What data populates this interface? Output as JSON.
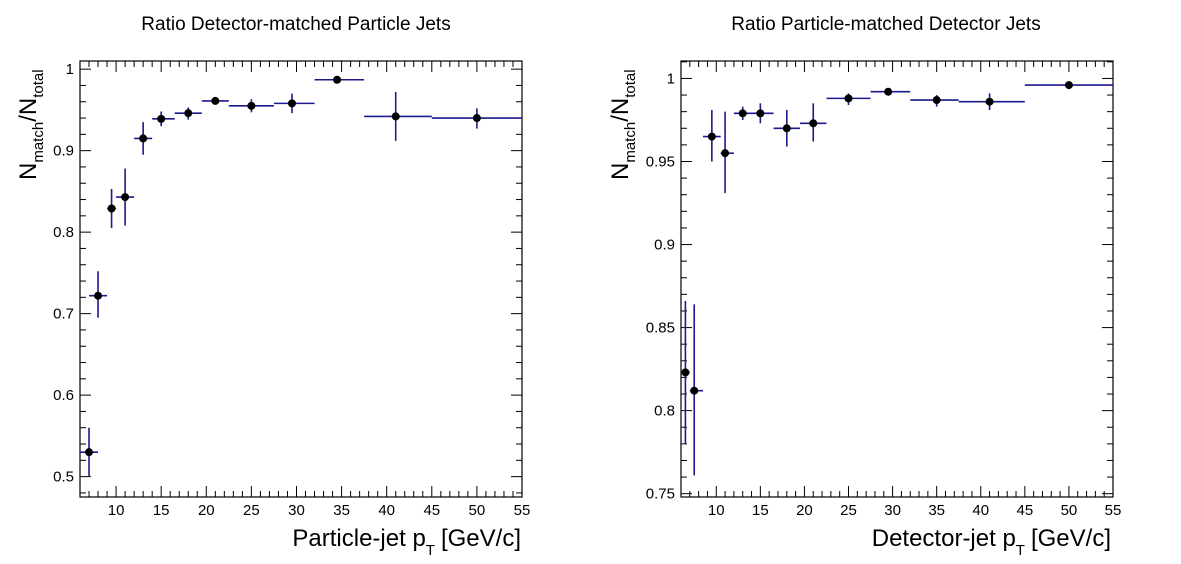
{
  "chart_data": [
    {
      "type": "scatter",
      "title": "Ratio Detector-matched Particle Jets",
      "xlabel": {
        "main": "Particle-jet p",
        "sub": "T",
        "unit": "[GeV/c]"
      },
      "ylabel": {
        "n": "N",
        "sub1": "match",
        "slash": "/N",
        "sub2": "total"
      },
      "xlim": [
        6,
        55
      ],
      "ylim": [
        0.475,
        1.01
      ],
      "xticks": [
        10,
        15,
        20,
        25,
        30,
        35,
        40,
        45,
        50,
        55
      ],
      "yticks": [
        0.5,
        0.6,
        0.7,
        0.8,
        0.9,
        1
      ],
      "ytick_labels": [
        "0.5",
        "0.6",
        "0.7",
        "0.8",
        "0.9",
        "1"
      ],
      "marker_color": "#000000",
      "errorbar_color": "#1a1a8c",
      "points": [
        {
          "x": 7.0,
          "xlo": 6.0,
          "xhi": 8.0,
          "y": 0.53,
          "ylo": 0.5,
          "yhi": 0.56
        },
        {
          "x": 8.0,
          "xlo": 7.0,
          "xhi": 9.0,
          "y": 0.722,
          "ylo": 0.695,
          "yhi": 0.752
        },
        {
          "x": 9.5,
          "xlo": 9.0,
          "xhi": 10.0,
          "y": 0.829,
          "ylo": 0.805,
          "yhi": 0.853
        },
        {
          "x": 11.0,
          "xlo": 10.0,
          "xhi": 12.0,
          "y": 0.843,
          "ylo": 0.808,
          "yhi": 0.878
        },
        {
          "x": 13.0,
          "xlo": 12.0,
          "xhi": 14.0,
          "y": 0.915,
          "ylo": 0.895,
          "yhi": 0.935
        },
        {
          "x": 15.0,
          "xlo": 14.0,
          "xhi": 16.5,
          "y": 0.939,
          "ylo": 0.93,
          "yhi": 0.948
        },
        {
          "x": 18.0,
          "xlo": 16.5,
          "xhi": 19.5,
          "y": 0.946,
          "ylo": 0.938,
          "yhi": 0.953
        },
        {
          "x": 21.0,
          "xlo": 19.5,
          "xhi": 22.5,
          "y": 0.961,
          "ylo": 0.957,
          "yhi": 0.965
        },
        {
          "x": 25.0,
          "xlo": 22.5,
          "xhi": 27.5,
          "y": 0.955,
          "ylo": 0.947,
          "yhi": 0.963
        },
        {
          "x": 29.5,
          "xlo": 27.5,
          "xhi": 32.0,
          "y": 0.958,
          "ylo": 0.946,
          "yhi": 0.97
        },
        {
          "x": 34.5,
          "xlo": 32.0,
          "xhi": 37.5,
          "y": 0.987,
          "ylo": 0.984,
          "yhi": 0.99
        },
        {
          "x": 41.0,
          "xlo": 37.5,
          "xhi": 45.0,
          "y": 0.942,
          "ylo": 0.912,
          "yhi": 0.972
        },
        {
          "x": 50.0,
          "xlo": 45.0,
          "xhi": 55.0,
          "y": 0.94,
          "ylo": 0.927,
          "yhi": 0.952
        }
      ]
    },
    {
      "type": "scatter",
      "title": "Ratio Particle-matched Detector Jets",
      "xlabel": {
        "main": "Detector-jet p",
        "sub": "T",
        "unit": "[GeV/c]"
      },
      "ylabel": {
        "n": "N",
        "sub1": "match",
        "slash": "/N",
        "sub2": "total"
      },
      "xlim": [
        6,
        55
      ],
      "ylim": [
        0.748,
        1.0105
      ],
      "xticks": [
        10,
        15,
        20,
        25,
        30,
        35,
        40,
        45,
        50,
        55
      ],
      "yticks": [
        0.75,
        0.8,
        0.85,
        0.9,
        0.95,
        1
      ],
      "ytick_labels": [
        "0.75",
        "0.8",
        "0.85",
        "0.9",
        "0.95",
        "1"
      ],
      "marker_color": "#000000",
      "errorbar_color": "#1a1a8c",
      "points": [
        {
          "x": 6.5,
          "xlo": 6.0,
          "xhi": 7.0,
          "y": 0.823,
          "ylo": 0.78,
          "yhi": 0.866
        },
        {
          "x": 7.5,
          "xlo": 7.0,
          "xhi": 8.5,
          "y": 0.812,
          "ylo": 0.761,
          "yhi": 0.864
        },
        {
          "x": 9.5,
          "xlo": 8.5,
          "xhi": 10.5,
          "y": 0.965,
          "ylo": 0.95,
          "yhi": 0.981
        },
        {
          "x": 11.0,
          "xlo": 10.5,
          "xhi": 12.0,
          "y": 0.955,
          "ylo": 0.931,
          "yhi": 0.98
        },
        {
          "x": 13.0,
          "xlo": 12.0,
          "xhi": 14.0,
          "y": 0.979,
          "ylo": 0.975,
          "yhi": 0.983
        },
        {
          "x": 15.0,
          "xlo": 14.0,
          "xhi": 16.5,
          "y": 0.979,
          "ylo": 0.973,
          "yhi": 0.985
        },
        {
          "x": 18.0,
          "xlo": 16.5,
          "xhi": 19.5,
          "y": 0.97,
          "ylo": 0.959,
          "yhi": 0.981
        },
        {
          "x": 21.0,
          "xlo": 19.5,
          "xhi": 22.5,
          "y": 0.973,
          "ylo": 0.962,
          "yhi": 0.985
        },
        {
          "x": 25.0,
          "xlo": 22.5,
          "xhi": 27.5,
          "y": 0.988,
          "ylo": 0.984,
          "yhi": 0.991
        },
        {
          "x": 29.5,
          "xlo": 27.5,
          "xhi": 32.0,
          "y": 0.992,
          "ylo": 0.99,
          "yhi": 0.994
        },
        {
          "x": 35.0,
          "xlo": 32.0,
          "xhi": 37.5,
          "y": 0.987,
          "ylo": 0.983,
          "yhi": 0.99
        },
        {
          "x": 41.0,
          "xlo": 37.5,
          "xhi": 45.0,
          "y": 0.986,
          "ylo": 0.981,
          "yhi": 0.991
        },
        {
          "x": 50.0,
          "xlo": 45.0,
          "xhi": 55.0,
          "y": 0.996,
          "ylo": 0.994,
          "yhi": 0.998
        }
      ]
    }
  ]
}
